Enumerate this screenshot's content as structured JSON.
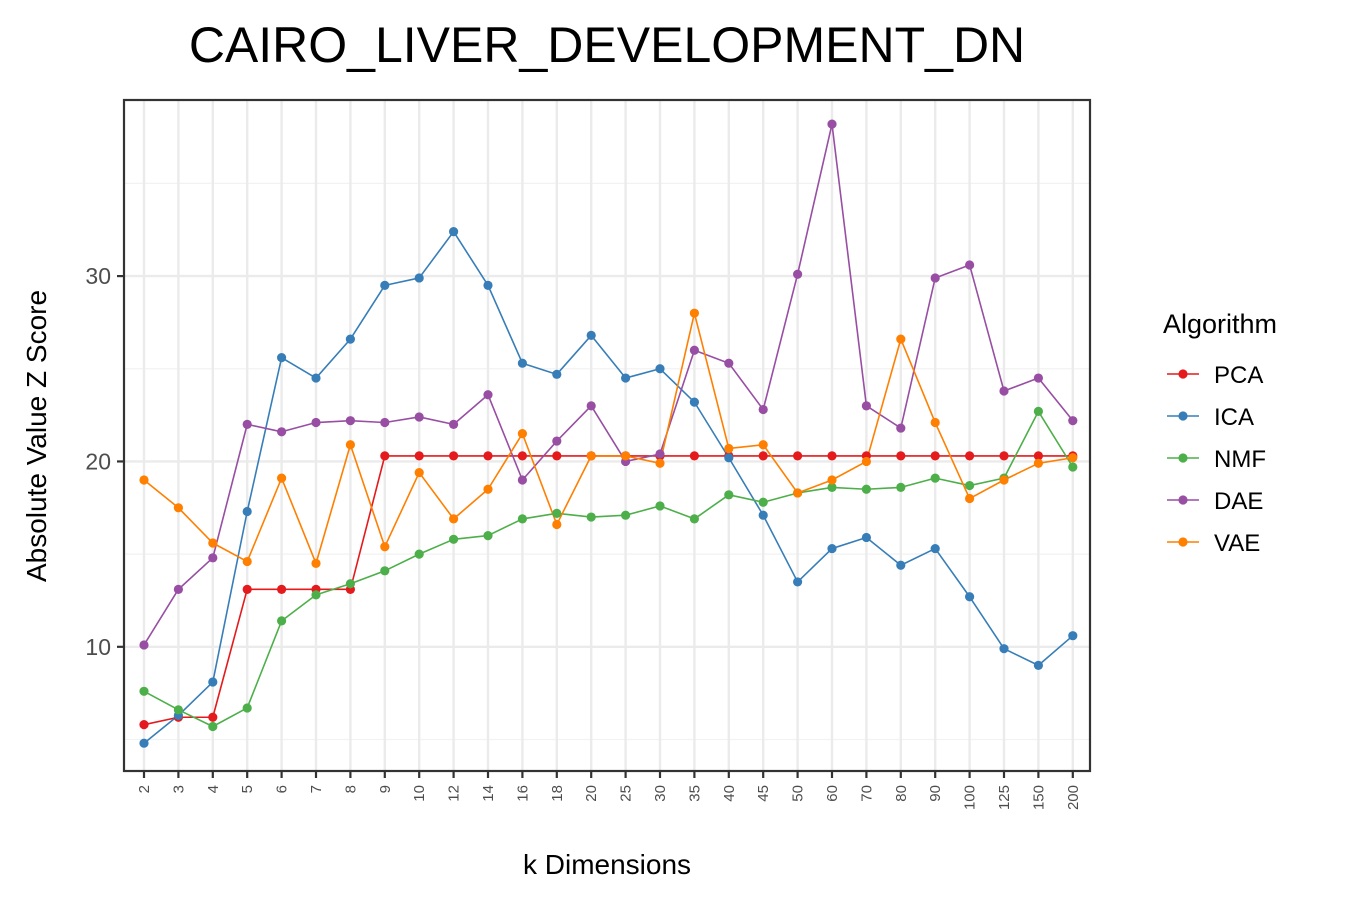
{
  "chart_data": {
    "type": "line",
    "title": "CAIRO_LIVER_DEVELOPMENT_DN",
    "xlabel": "k Dimensions",
    "ylabel": "Absolute Value Z Score",
    "categories": [
      "2",
      "3",
      "4",
      "5",
      "6",
      "7",
      "8",
      "9",
      "10",
      "12",
      "14",
      "16",
      "18",
      "20",
      "25",
      "30",
      "35",
      "40",
      "45",
      "50",
      "60",
      "70",
      "80",
      "90",
      "100",
      "125",
      "150",
      "200"
    ],
    "yticks": [
      10,
      20,
      30
    ],
    "ylim": [
      3.3,
      39.5
    ],
    "grid": true,
    "legend": {
      "title": "Algorithm",
      "position": "right"
    },
    "series": [
      {
        "name": "PCA",
        "color": "#e41a1c",
        "values": [
          5.8,
          6.2,
          6.2,
          13.1,
          13.1,
          13.1,
          13.1,
          20.3,
          20.3,
          20.3,
          20.3,
          20.3,
          20.3,
          20.3,
          20.3,
          20.3,
          20.3,
          20.3,
          20.3,
          20.3,
          20.3,
          20.3,
          20.3,
          20.3,
          20.3,
          20.3,
          20.3,
          20.3
        ]
      },
      {
        "name": "ICA",
        "color": "#377eb8",
        "values": [
          4.8,
          6.3,
          8.1,
          17.3,
          25.6,
          24.5,
          26.6,
          29.5,
          29.9,
          32.4,
          29.5,
          25.3,
          24.7,
          26.8,
          24.5,
          25.0,
          23.2,
          20.2,
          17.1,
          13.5,
          15.3,
          15.9,
          14.4,
          15.3,
          12.7,
          9.9,
          9.0,
          10.6
        ]
      },
      {
        "name": "NMF",
        "color": "#4daf4a",
        "values": [
          7.6,
          6.6,
          5.7,
          6.7,
          11.4,
          12.8,
          13.4,
          14.1,
          15.0,
          15.8,
          16.0,
          16.9,
          17.2,
          17.0,
          17.1,
          17.6,
          16.9,
          18.2,
          17.8,
          18.3,
          18.6,
          18.5,
          18.6,
          19.1,
          18.7,
          19.1,
          22.7,
          19.7
        ]
      },
      {
        "name": "DAE",
        "color": "#984ea3",
        "values": [
          10.1,
          13.1,
          14.8,
          22.0,
          21.6,
          22.1,
          22.2,
          22.1,
          22.4,
          22.0,
          23.6,
          19.0,
          21.1,
          23.0,
          20.0,
          20.4,
          26.0,
          25.3,
          22.8,
          30.1,
          38.2,
          23.0,
          21.8,
          29.9,
          30.6,
          23.8,
          24.5,
          22.2
        ]
      },
      {
        "name": "VAE",
        "color": "#ff7f00",
        "values": [
          19.0,
          17.5,
          15.6,
          14.6,
          19.1,
          14.5,
          20.9,
          15.4,
          19.4,
          16.9,
          18.5,
          21.5,
          16.6,
          20.3,
          20.3,
          19.9,
          28.0,
          20.7,
          20.9,
          18.3,
          19.0,
          20.0,
          26.6,
          22.1,
          18.0,
          19.0,
          19.9,
          20.2
        ]
      }
    ]
  }
}
